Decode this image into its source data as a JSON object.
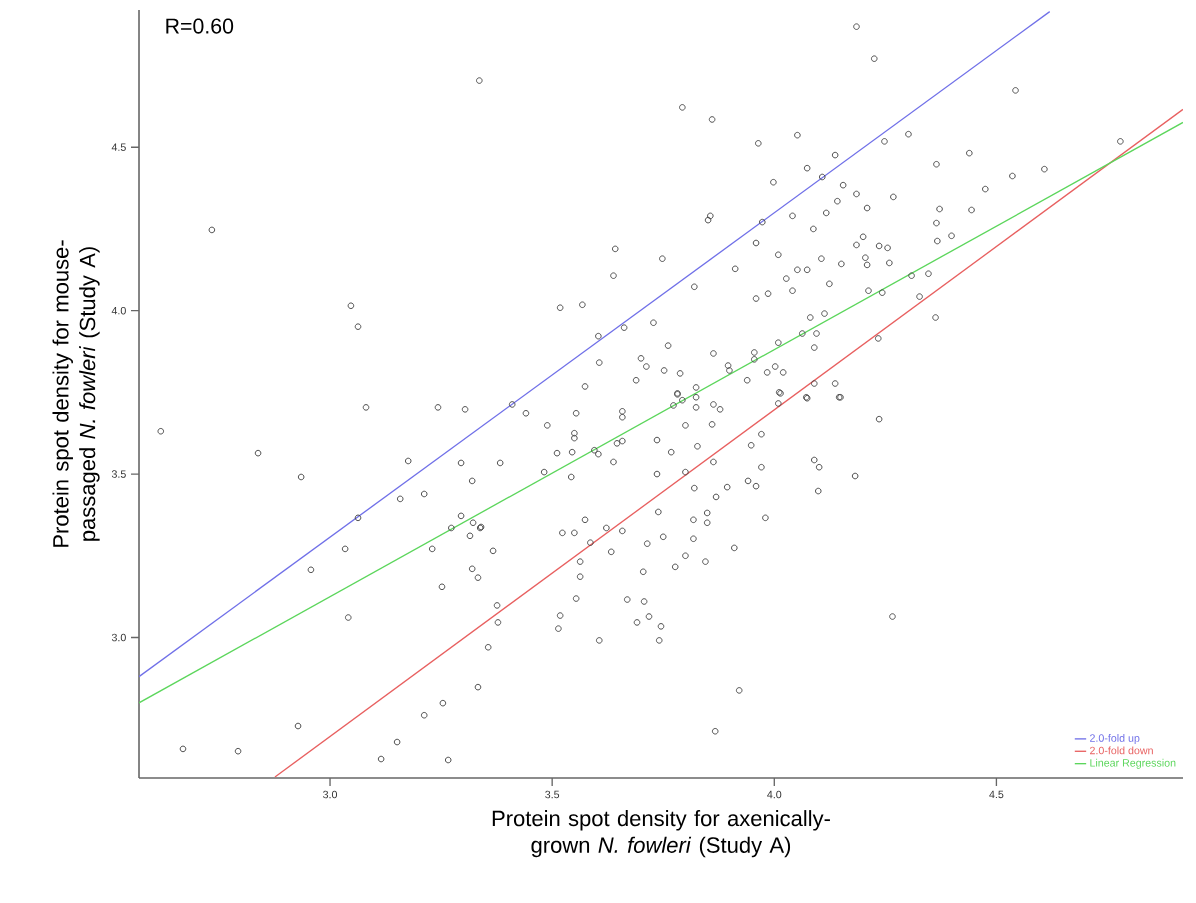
{
  "chart_data": {
    "type": "scatter",
    "xlabel": "Protein spot density for axenically-grown *N. fowleri* (Study A)",
    "ylabel": "Protein spot density for mouse-passaged *N. fowleri* (Study A)",
    "annotations": [
      "R=0.60"
    ],
    "xlim": [
      2.57,
      4.92
    ],
    "ylim": [
      2.57,
      4.92
    ],
    "xticks": [
      {
        "value": 3,
        "label": "3.0"
      },
      3.5,
      {
        "value": 4,
        "label": "4.0"
      },
      4.5
    ],
    "yticks": [
      {
        "value": 3,
        "label": "3.0"
      },
      3.5,
      {
        "value": 4,
        "label": "4.0"
      },
      4.5
    ],
    "legend": "bottom right",
    "series": [
      {
        "marker": "circle",
        "color": "#444444",
        "x": [
          3.336,
          2.734,
          3.047,
          3.063,
          4.185,
          3.793,
          3.86,
          3.964,
          4.052,
          4.137,
          4.074,
          4.108,
          3.998,
          4.155,
          4.185,
          4.142,
          4.117,
          4.041,
          3.856,
          3.851,
          3.973,
          4.088,
          4.185,
          3.959,
          4.009,
          3.642,
          3.748,
          3.638,
          3.912,
          4.106,
          4.151,
          4.052,
          4.074,
          4.027,
          4.124,
          3.82,
          3.986,
          4.041,
          3.959,
          3.518,
          3.568,
          4.081,
          4.113,
          3.728,
          3.604,
          3.662,
          4.063,
          4.095,
          3.761,
          4.09,
          4.009,
          3.863,
          3.955,
          3.955,
          3.606,
          3.7,
          3.712,
          3.752,
          3.788,
          3.896,
          3.899,
          3.984,
          4.002,
          4.02,
          3.689,
          3.574,
          3.824,
          3.939,
          4.09,
          4.137,
          4.011,
          3.782,
          4.072,
          4.149,
          4.225,
          4.543,
          4.248,
          4.302,
          4.779,
          4.439,
          4.365,
          4.536,
          4.608,
          4.475,
          4.268,
          4.209,
          4.372,
          4.444,
          4.365,
          4.2,
          4.236,
          4.255,
          4.367,
          4.399,
          4.205,
          4.209,
          4.259,
          4.309,
          4.347,
          4.212,
          4.243,
          4.327,
          4.363,
          4.234,
          2.619,
          3.081,
          3.243,
          3.304,
          2.838,
          2.935,
          3.176,
          3.295,
          3.32,
          3.158,
          3.212,
          3.063,
          3.295,
          3.273,
          3.322,
          3.338,
          3.315,
          3.034,
          3.23,
          2.957,
          3.32,
          3.333,
          3.252,
          3.041,
          3.356,
          3.333,
          3.254,
          3.212,
          2.928,
          2.669,
          2.793,
          3.151,
          3.115,
          3.266,
          3.41,
          3.441,
          3.554,
          3.489,
          3.55,
          3.55,
          3.658,
          3.658,
          3.782,
          3.793,
          3.824,
          3.773,
          3.824,
          3.863,
          3.878,
          4.009,
          4.014,
          4.074,
          4.146,
          3.8,
          3.86,
          3.971,
          3.736,
          3.827,
          3.768,
          3.948,
          3.646,
          3.658,
          3.595,
          3.604,
          3.511,
          3.545,
          3.638,
          3.863,
          3.383,
          3.482,
          3.543,
          3.736,
          3.8,
          3.971,
          4.09,
          4.101,
          4.182,
          3.82,
          3.894,
          3.941,
          3.959,
          4.099,
          3.869,
          3.739,
          3.849,
          3.849,
          3.818,
          3.98,
          3.574,
          3.34,
          3.523,
          3.55,
          3.622,
          3.658,
          3.75,
          3.818,
          3.586,
          3.714,
          3.367,
          3.633,
          3.8,
          3.91,
          3.777,
          3.845,
          3.563,
          3.563,
          3.705,
          3.554,
          3.669,
          3.707,
          3.376,
          3.378,
          3.518,
          3.514,
          3.718,
          3.691,
          3.745,
          3.741,
          3.606,
          3.921,
          3.867,
          4.236,
          4.266
        ],
        "values": [
          4.704,
          4.247,
          4.015,
          3.951,
          4.869,
          4.622,
          4.585,
          4.512,
          4.537,
          4.476,
          4.436,
          4.409,
          4.393,
          4.384,
          4.357,
          4.335,
          4.299,
          4.29,
          4.29,
          4.277,
          4.271,
          4.25,
          4.201,
          4.207,
          4.171,
          4.189,
          4.159,
          4.107,
          4.128,
          4.159,
          4.143,
          4.125,
          4.125,
          4.098,
          4.082,
          4.073,
          4.052,
          4.061,
          4.037,
          4.009,
          4.018,
          3.979,
          3.991,
          3.963,
          3.922,
          3.948,
          3.93,
          3.93,
          3.893,
          3.887,
          3.902,
          3.869,
          3.872,
          3.851,
          3.841,
          3.854,
          3.829,
          3.817,
          3.808,
          3.832,
          3.817,
          3.811,
          3.829,
          3.811,
          3.787,
          3.768,
          3.765,
          3.787,
          3.777,
          3.777,
          3.75,
          3.747,
          3.735,
          3.735,
          4.771,
          4.674,
          4.518,
          4.54,
          4.518,
          4.482,
          4.448,
          4.412,
          4.433,
          4.372,
          4.348,
          4.314,
          4.311,
          4.308,
          4.268,
          4.226,
          4.198,
          4.192,
          4.213,
          4.229,
          4.162,
          4.14,
          4.146,
          4.107,
          4.113,
          4.061,
          4.055,
          4.043,
          3.979,
          3.915,
          3.631,
          3.704,
          3.704,
          3.698,
          3.564,
          3.491,
          3.54,
          3.534,
          3.479,
          3.424,
          3.439,
          3.366,
          3.372,
          3.335,
          3.351,
          3.335,
          3.311,
          3.271,
          3.271,
          3.207,
          3.21,
          3.183,
          3.155,
          3.061,
          2.97,
          2.848,
          2.799,
          2.762,
          2.729,
          2.659,
          2.652,
          2.68,
          2.628,
          2.625,
          3.713,
          3.686,
          3.686,
          3.649,
          3.625,
          3.61,
          3.692,
          3.674,
          3.744,
          3.726,
          3.735,
          3.71,
          3.704,
          3.713,
          3.698,
          3.716,
          3.747,
          3.732,
          3.735,
          3.649,
          3.652,
          3.622,
          3.604,
          3.585,
          3.567,
          3.588,
          3.594,
          3.601,
          3.573,
          3.561,
          3.564,
          3.567,
          3.537,
          3.537,
          3.534,
          3.506,
          3.491,
          3.5,
          3.506,
          3.521,
          3.543,
          3.521,
          3.494,
          3.457,
          3.46,
          3.479,
          3.463,
          3.448,
          3.43,
          3.384,
          3.381,
          3.351,
          3.36,
          3.366,
          3.36,
          3.338,
          3.32,
          3.32,
          3.335,
          3.326,
          3.308,
          3.302,
          3.29,
          3.287,
          3.265,
          3.262,
          3.25,
          3.274,
          3.216,
          3.232,
          3.232,
          3.186,
          3.201,
          3.119,
          3.116,
          3.11,
          3.098,
          3.046,
          3.067,
          3.027,
          3.064,
          3.046,
          3.034,
          2.991,
          2.991,
          2.838,
          2.713,
          3.668,
          3.064
        ]
      },
      {
        "type": "line",
        "name": "2.0-fold up",
        "color": "#7070e8",
        "x": [
          2.57,
          4.62
        ],
        "values": [
          2.88,
          4.915
        ]
      },
      {
        "type": "line",
        "name": "2.0-fold down",
        "color": "#e86060",
        "x": [
          2.876,
          4.92
        ],
        "values": [
          2.573,
          4.616
        ]
      },
      {
        "type": "line",
        "name": "Linear Regression",
        "color": "#5cd65c",
        "x": [
          2.57,
          4.92
        ],
        "values": [
          2.8,
          4.576
        ]
      }
    ]
  }
}
